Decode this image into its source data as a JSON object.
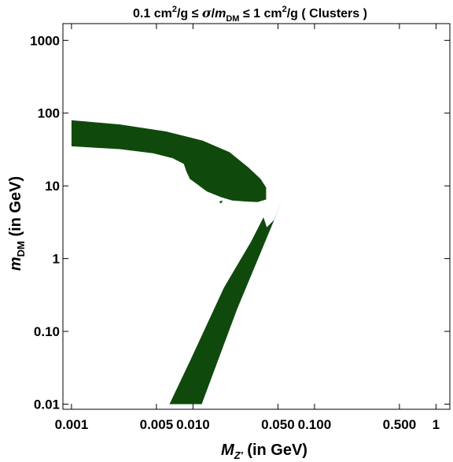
{
  "chart_data": {
    "type": "region",
    "title": {
      "text_1": "0.1 cm",
      "sup_1": "2",
      "text_2": "/g ≤ ",
      "sigma": "σ",
      "slash": "/",
      "m": "m",
      "sub": "DM",
      "text_3": " ≤ 1 cm",
      "sup_2": "2",
      "text_4": "/g ( Clusters )"
    },
    "xlabel": {
      "var": "M",
      "sub": "Z'",
      "unit": " (in GeV)"
    },
    "ylabel": {
      "var": "m",
      "sub": "DM",
      "unit": " (in GeV)"
    },
    "x_scale": "log",
    "y_scale": "log",
    "xlim": [
      0.00085,
      1.3
    ],
    "ylim": [
      0.0085,
      1700
    ],
    "x_ticks": [
      {
        "value": 0.001,
        "label": "0.001"
      },
      {
        "value": 0.005,
        "label": "0.005"
      },
      {
        "value": 0.01,
        "label": "0.010"
      },
      {
        "value": 0.05,
        "label": "0.050"
      },
      {
        "value": 0.1,
        "label": "0.100"
      },
      {
        "value": 0.5,
        "label": "0.500"
      },
      {
        "value": 1,
        "label": "1"
      }
    ],
    "y_ticks": [
      {
        "value": 0.01,
        "label": "0.01"
      },
      {
        "value": 0.1,
        "label": "0.10"
      },
      {
        "value": 1,
        "label": "1"
      },
      {
        "value": 10,
        "label": "10"
      },
      {
        "value": 100,
        "label": "100"
      },
      {
        "value": 1000,
        "label": "1000"
      }
    ],
    "grid": false,
    "fill_color": "#0f4a0c",
    "regions": [
      {
        "name": "upper-band",
        "points": [
          [
            0.001,
            80
          ],
          [
            0.0025,
            70
          ],
          [
            0.006,
            56
          ],
          [
            0.012,
            42
          ],
          [
            0.02,
            29
          ],
          [
            0.0285,
            18
          ],
          [
            0.036,
            12.5
          ],
          [
            0.04,
            9.5
          ],
          [
            0.04,
            6.5
          ],
          [
            0.034,
            6.0
          ],
          [
            0.027,
            6.1
          ],
          [
            0.021,
            6.3
          ],
          [
            0.017,
            7.0
          ],
          [
            0.013,
            8.4
          ],
          [
            0.0094,
            12.5
          ],
          [
            0.0088,
            16
          ],
          [
            0.0084,
            20
          ],
          [
            0.0068,
            24
          ],
          [
            0.0047,
            28
          ],
          [
            0.0025,
            32
          ],
          [
            0.001,
            35
          ]
        ]
      },
      {
        "name": "lower-band",
        "points": [
          [
            0.0064,
            0.01
          ],
          [
            0.0118,
            0.01
          ],
          [
            0.023,
            0.2
          ],
          [
            0.036,
            1.2
          ],
          [
            0.054,
            6.2
          ],
          [
            0.0464,
            3.4
          ],
          [
            0.0405,
            2.7
          ],
          [
            0.038,
            3.7
          ],
          [
            0.03,
            1.7
          ],
          [
            0.018,
            0.4
          ],
          [
            0.0095,
            0.04
          ]
        ]
      }
    ],
    "spots": [
      {
        "name": "small-spot-1",
        "points": [
          [
            0.0164,
            6.1
          ],
          [
            0.0176,
            6.3
          ],
          [
            0.017,
            5.7
          ]
        ]
      },
      {
        "name": "small-spot-2",
        "points": [
          [
            0.0242,
            16.2
          ],
          [
            0.0252,
            16.6
          ],
          [
            0.0246,
            15.6
          ]
        ]
      }
    ]
  }
}
